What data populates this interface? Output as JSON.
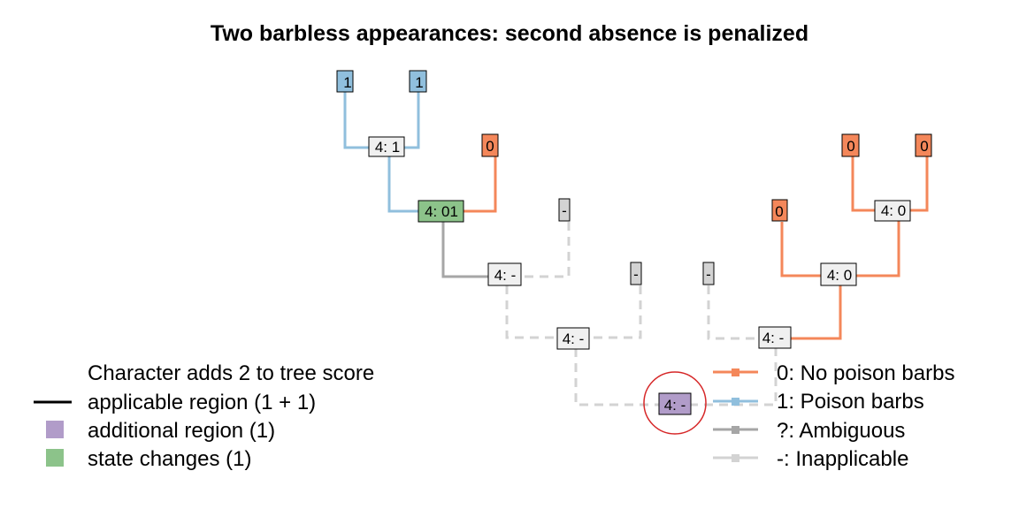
{
  "title": "Two barbless appearances: second absence is penalized",
  "colors": {
    "state0": "#f4875a",
    "state1": "#90bfdd",
    "ambiguous": "#a6a6a6",
    "inapplicable": "#d3d3d3",
    "additional_region": "#b19cc9",
    "state_change": "#8cc38a",
    "node_default": "#f0f0f0",
    "highlight_circle": "#d62728"
  },
  "tips": [
    {
      "label": "1",
      "state": "1"
    },
    {
      "label": "1",
      "state": "1"
    },
    {
      "label": "0",
      "state": "0"
    },
    {
      "label": "-",
      "state": "-"
    },
    {
      "label": "-",
      "state": "-"
    },
    {
      "label": "-",
      "state": "-"
    },
    {
      "label": "0",
      "state": "0"
    },
    {
      "label": "0",
      "state": "0"
    },
    {
      "label": "0",
      "state": "0"
    }
  ],
  "nodes": [
    {
      "label": "4: 1",
      "kind": "default"
    },
    {
      "label": "4: 01",
      "kind": "state_change"
    },
    {
      "label": "4: -",
      "kind": "default"
    },
    {
      "label": "4: -",
      "kind": "default"
    },
    {
      "label": "4: 0",
      "kind": "default"
    },
    {
      "label": "4: 0",
      "kind": "default"
    },
    {
      "label": "4: -",
      "kind": "default"
    },
    {
      "label": "4: -",
      "kind": "additional_region"
    }
  ],
  "legend_left": {
    "heading": "Character adds 2 to tree score",
    "items": [
      {
        "symbol": "line",
        "label": "applicable region (1 + 1)"
      },
      {
        "symbol": "square-purple",
        "label": "additional region (1)"
      },
      {
        "symbol": "square-green",
        "label": "state changes (1)"
      }
    ]
  },
  "legend_right": {
    "items": [
      {
        "state": "0",
        "label": "0: No poison barbs"
      },
      {
        "state": "1",
        "label": "1: Poison barbs"
      },
      {
        "state": "?",
        "label": "?: Ambiguous"
      },
      {
        "state": "-",
        "label": "-: Inapplicable"
      }
    ]
  }
}
